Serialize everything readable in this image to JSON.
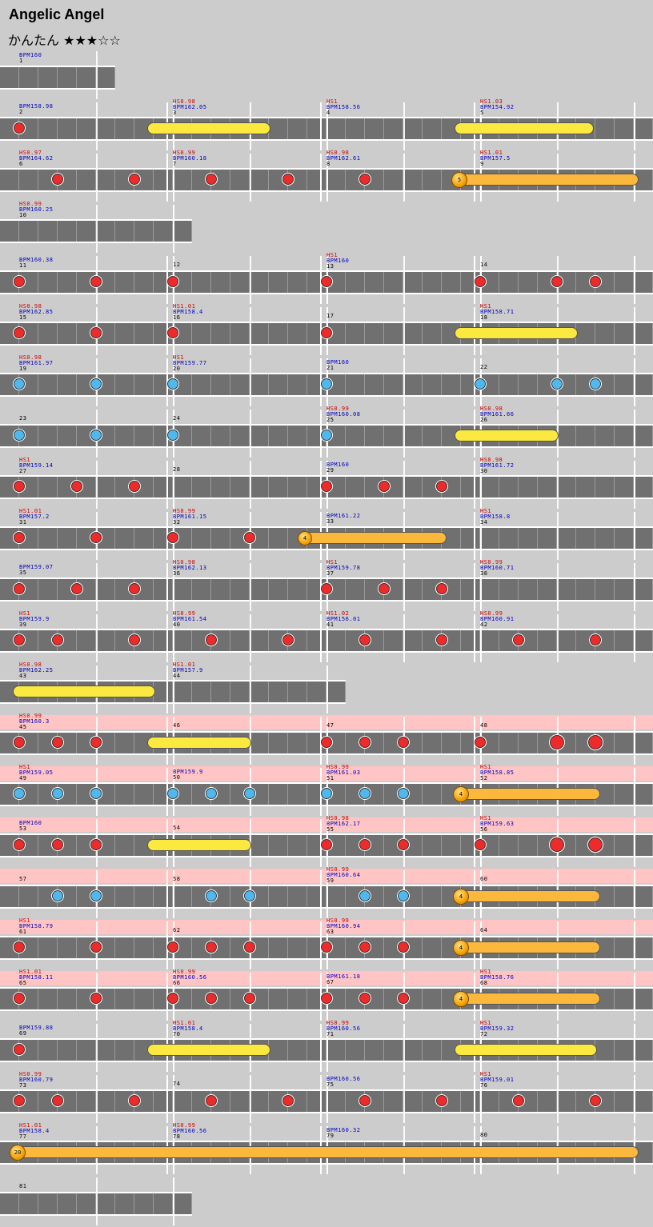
{
  "song": {
    "title": "Angelic Angel",
    "difficulty": "かんたん",
    "stars": "★★★☆☆"
  },
  "colors": {
    "red_note": "#ee2b2b",
    "blue_note": "#4fb8ee",
    "hold_yellow": "#fbe93f",
    "hold_orange": "#fcb73d",
    "highlight_band": "#ffc4c4"
  },
  "rows": [
    {
      "y": 62,
      "w": 144,
      "measures": [
        {
          "n": "1",
          "bpm": "BPM160"
        }
      ],
      "notes": []
    },
    {
      "y": 126,
      "measures": [
        {
          "n": "2",
          "bpm": "BPM158.98"
        },
        {
          "n": "3",
          "bpm": "BPM162.05",
          "hs": "HS0.98"
        },
        {
          "n": "4",
          "bpm": "BPM158.56",
          "hs": "HS1"
        },
        {
          "n": "5",
          "bpm": "BPM154.92",
          "hs": "HS1.03"
        }
      ],
      "notes": [
        {
          "x": 24,
          "c": "red"
        },
        {
          "hold": [
            184,
            338
          ],
          "c": "yellow"
        },
        {
          "hold": [
            568,
            742
          ],
          "c": "yellow"
        }
      ]
    },
    {
      "y": 190,
      "measures": [
        {
          "n": "6",
          "bpm": "BPM164.62",
          "hs": "HS0.97"
        },
        {
          "n": "7",
          "bpm": "BPM160.18",
          "hs": "HS0.99"
        },
        {
          "n": "8",
          "bpm": "BPM162.61",
          "hs": "HS0.98"
        },
        {
          "n": "9",
          "bpm": "BPM157.5",
          "hs": "HS1.01"
        }
      ],
      "notes": [
        {
          "x": 72,
          "c": "red"
        },
        {
          "x": 168,
          "c": "red"
        },
        {
          "x": 264,
          "c": "red"
        },
        {
          "x": 360,
          "c": "red"
        },
        {
          "x": 456,
          "c": "red"
        },
        {
          "hold": [
            566,
            798
          ],
          "c": "orange",
          "ball": "5"
        }
      ]
    },
    {
      "y": 254,
      "w": 240,
      "measures": [
        {
          "n": "10",
          "bpm": "BPM160.25",
          "hs": "HS0.99"
        }
      ],
      "notes": []
    },
    {
      "y": 318,
      "measures": [
        {
          "n": "11",
          "bpm": "BPM160.38"
        },
        {
          "n": "12"
        },
        {
          "n": "13",
          "bpm": "BPM160",
          "hs": "HS1"
        },
        {
          "n": "14"
        }
      ],
      "notes": [
        {
          "x": 24,
          "c": "red"
        },
        {
          "x": 120,
          "c": "red"
        },
        {
          "x": 216,
          "c": "red"
        },
        {
          "x": 408,
          "c": "red"
        },
        {
          "x": 600,
          "c": "red"
        },
        {
          "x": 696,
          "c": "red"
        },
        {
          "x": 744,
          "c": "red"
        }
      ]
    },
    {
      "y": 382,
      "measures": [
        {
          "n": "15",
          "bpm": "BPM162.85",
          "hs": "HS0.98"
        },
        {
          "n": "16",
          "bpm": "BPM158.4",
          "hs": "HS1.01"
        },
        {
          "n": "17"
        },
        {
          "n": "18",
          "bpm": "BPM158.71",
          "hs": "HS1"
        }
      ],
      "notes": [
        {
          "x": 24,
          "c": "red"
        },
        {
          "x": 120,
          "c": "red"
        },
        {
          "x": 216,
          "c": "red"
        },
        {
          "x": 408,
          "c": "red"
        },
        {
          "hold": [
            568,
            722
          ],
          "c": "yellow"
        }
      ]
    },
    {
      "y": 446,
      "measures": [
        {
          "n": "19",
          "bpm": "BPM161.97",
          "hs": "HS0.98"
        },
        {
          "n": "20",
          "bpm": "BPM159.77",
          "hs": "HS1"
        },
        {
          "n": "21",
          "bpm": "BPM160"
        },
        {
          "n": "22"
        }
      ],
      "notes": [
        {
          "x": 24,
          "c": "blue"
        },
        {
          "x": 120,
          "c": "blue"
        },
        {
          "x": 216,
          "c": "blue"
        },
        {
          "x": 408,
          "c": "blue"
        },
        {
          "x": 600,
          "c": "blue"
        },
        {
          "x": 696,
          "c": "blue"
        },
        {
          "x": 744,
          "c": "blue"
        }
      ]
    },
    {
      "y": 510,
      "measures": [
        {
          "n": "23"
        },
        {
          "n": "24"
        },
        {
          "n": "25",
          "bpm": "BPM160.08",
          "hs": "HS0.99"
        },
        {
          "n": "26",
          "bpm": "BPM161.66",
          "hs": "HS0.98"
        }
      ],
      "notes": [
        {
          "x": 24,
          "c": "blue"
        },
        {
          "x": 120,
          "c": "blue"
        },
        {
          "x": 216,
          "c": "blue"
        },
        {
          "x": 408,
          "c": "blue"
        },
        {
          "hold": [
            568,
            698
          ],
          "c": "yellow"
        }
      ]
    },
    {
      "y": 574,
      "measures": [
        {
          "n": "27",
          "bpm": "BPM159.14",
          "hs": "HS1"
        },
        {
          "n": "28"
        },
        {
          "n": "29",
          "bpm": "BPM160"
        },
        {
          "n": "30",
          "bpm": "BPM161.72",
          "hs": "HS0.98"
        }
      ],
      "notes": [
        {
          "x": 24,
          "c": "red"
        },
        {
          "x": 96,
          "c": "red"
        },
        {
          "x": 168,
          "c": "red"
        },
        {
          "x": 408,
          "c": "red"
        },
        {
          "x": 480,
          "c": "red"
        },
        {
          "x": 552,
          "c": "red"
        }
      ]
    },
    {
      "y": 638,
      "measures": [
        {
          "n": "31",
          "bpm": "BPM157.2",
          "hs": "HS1.01"
        },
        {
          "n": "32",
          "bpm": "BPM161.15",
          "hs": "HS0.99"
        },
        {
          "n": "33",
          "bpm": "BPM161.22"
        },
        {
          "n": "34",
          "bpm": "BPM158.8",
          "hs": "HS1"
        }
      ],
      "notes": [
        {
          "x": 24,
          "c": "red"
        },
        {
          "x": 120,
          "c": "red"
        },
        {
          "x": 216,
          "c": "red"
        },
        {
          "x": 312,
          "c": "red"
        },
        {
          "hold": [
            374,
            558
          ],
          "c": "orange",
          "ball": "4"
        }
      ]
    },
    {
      "y": 702,
      "measures": [
        {
          "n": "35",
          "bpm": "BPM159.07"
        },
        {
          "n": "36",
          "bpm": "BPM162.13",
          "hs": "HS0.98"
        },
        {
          "n": "37",
          "bpm": "BPM159.78",
          "hs": "HS1"
        },
        {
          "n": "38",
          "bpm": "BPM160.71",
          "hs": "HS0.99"
        }
      ],
      "notes": [
        {
          "x": 24,
          "c": "red"
        },
        {
          "x": 96,
          "c": "red"
        },
        {
          "x": 168,
          "c": "red"
        },
        {
          "x": 408,
          "c": "red"
        },
        {
          "x": 480,
          "c": "red"
        },
        {
          "x": 552,
          "c": "red"
        }
      ]
    },
    {
      "y": 766,
      "measures": [
        {
          "n": "39",
          "bpm": "BPM159.9",
          "hs": "HS1"
        },
        {
          "n": "40",
          "bpm": "BPM161.54",
          "hs": "HS0.99"
        },
        {
          "n": "41",
          "bpm": "BPM156.01",
          "hs": "HS1.02"
        },
        {
          "n": "42",
          "bpm": "BPM160.91",
          "hs": "HS0.99"
        }
      ],
      "notes": [
        {
          "x": 24,
          "c": "red"
        },
        {
          "x": 72,
          "c": "red"
        },
        {
          "x": 168,
          "c": "red"
        },
        {
          "x": 264,
          "c": "red"
        },
        {
          "x": 360,
          "c": "red"
        },
        {
          "x": 456,
          "c": "red"
        },
        {
          "x": 552,
          "c": "red"
        },
        {
          "x": 648,
          "c": "red"
        },
        {
          "x": 744,
          "c": "red"
        }
      ]
    },
    {
      "y": 830,
      "w": 432,
      "measures": [
        {
          "n": "43",
          "bpm": "BPM162.25",
          "hs": "HS0.98"
        },
        {
          "n": "44",
          "bpm": "BPM157.9",
          "hs": "HS1.01"
        }
      ],
      "notes": [
        {
          "hold": [
            16,
            194
          ],
          "c": "yellow"
        }
      ]
    },
    {
      "y": 894,
      "band": true,
      "measures": [
        {
          "n": "45",
          "bpm": "BPM160.3",
          "hs": "HS0.99"
        },
        {
          "n": "46"
        },
        {
          "n": "47"
        },
        {
          "n": "48"
        }
      ],
      "notes": [
        {
          "x": 24,
          "c": "red"
        },
        {
          "x": 72,
          "c": "red"
        },
        {
          "x": 120,
          "c": "red"
        },
        {
          "hold": [
            184,
            314
          ],
          "c": "yellow"
        },
        {
          "x": 408,
          "c": "red"
        },
        {
          "x": 456,
          "c": "red"
        },
        {
          "x": 504,
          "c": "red"
        },
        {
          "x": 600,
          "c": "red"
        },
        {
          "x": 696,
          "c": "red",
          "big": true
        },
        {
          "x": 744,
          "c": "red",
          "big": true
        }
      ]
    },
    {
      "y": 958,
      "band": true,
      "measures": [
        {
          "n": "49",
          "bpm": "BPM159.05",
          "hs": "HS1"
        },
        {
          "n": "50",
          "bpm": "BPM159.9"
        },
        {
          "n": "51",
          "bpm": "BPM161.03",
          "hs": "HS0.99"
        },
        {
          "n": "52",
          "bpm": "BPM158.85",
          "hs": "HS1"
        }
      ],
      "notes": [
        {
          "x": 24,
          "c": "blue"
        },
        {
          "x": 72,
          "c": "blue"
        },
        {
          "x": 120,
          "c": "blue"
        },
        {
          "x": 216,
          "c": "blue"
        },
        {
          "x": 264,
          "c": "blue"
        },
        {
          "x": 312,
          "c": "blue"
        },
        {
          "x": 408,
          "c": "blue"
        },
        {
          "x": 456,
          "c": "blue"
        },
        {
          "x": 504,
          "c": "blue"
        },
        {
          "hold": [
            568,
            750
          ],
          "c": "orange",
          "ball": "4"
        }
      ]
    },
    {
      "y": 1022,
      "band": true,
      "measures": [
        {
          "n": "53",
          "bpm": "BPM160"
        },
        {
          "n": "54"
        },
        {
          "n": "55",
          "bpm": "BPM162.17",
          "hs": "HS0.98"
        },
        {
          "n": "56",
          "bpm": "BPM159.63",
          "hs": "HS1"
        }
      ],
      "notes": [
        {
          "x": 24,
          "c": "red"
        },
        {
          "x": 72,
          "c": "red"
        },
        {
          "x": 120,
          "c": "red"
        },
        {
          "hold": [
            184,
            314
          ],
          "c": "yellow"
        },
        {
          "x": 408,
          "c": "red"
        },
        {
          "x": 456,
          "c": "red"
        },
        {
          "x": 504,
          "c": "red"
        },
        {
          "x": 600,
          "c": "red"
        },
        {
          "x": 696,
          "c": "red",
          "big": true
        },
        {
          "x": 744,
          "c": "red",
          "big": true
        }
      ]
    },
    {
      "y": 1086,
      "band": true,
      "measures": [
        {
          "n": "57"
        },
        {
          "n": "58"
        },
        {
          "n": "59",
          "bpm": "BPM160.64",
          "hs": "HS0.99"
        },
        {
          "n": "60"
        }
      ],
      "notes": [
        {
          "x": 72,
          "c": "blue"
        },
        {
          "x": 120,
          "c": "blue"
        },
        {
          "x": 264,
          "c": "blue"
        },
        {
          "x": 312,
          "c": "blue"
        },
        {
          "x": 456,
          "c": "blue"
        },
        {
          "x": 504,
          "c": "blue"
        },
        {
          "hold": [
            568,
            750
          ],
          "c": "orange",
          "ball": "4"
        }
      ]
    },
    {
      "y": 1150,
      "band": true,
      "measures": [
        {
          "n": "61",
          "bpm": "BPM158.79",
          "hs": "HS1"
        },
        {
          "n": "62"
        },
        {
          "n": "63",
          "bpm": "BPM160.94",
          "hs": "HS0.99"
        },
        {
          "n": "64"
        }
      ],
      "notes": [
        {
          "x": 24,
          "c": "red"
        },
        {
          "x": 120,
          "c": "red"
        },
        {
          "x": 216,
          "c": "red"
        },
        {
          "x": 264,
          "c": "red"
        },
        {
          "x": 312,
          "c": "red"
        },
        {
          "x": 408,
          "c": "red"
        },
        {
          "x": 456,
          "c": "red"
        },
        {
          "x": 504,
          "c": "red"
        },
        {
          "hold": [
            568,
            750
          ],
          "c": "orange",
          "ball": "4"
        }
      ]
    },
    {
      "y": 1214,
      "band": true,
      "measures": [
        {
          "n": "65",
          "bpm": "BPM158.11",
          "hs": "HS1.01"
        },
        {
          "n": "66",
          "bpm": "BPM160.56",
          "hs": "HS0.99"
        },
        {
          "n": "67",
          "bpm": "BPM161.18"
        },
        {
          "n": "68",
          "bpm": "BPM158.76",
          "hs": "HS1"
        }
      ],
      "notes": [
        {
          "x": 24,
          "c": "red"
        },
        {
          "x": 120,
          "c": "red"
        },
        {
          "x": 216,
          "c": "red"
        },
        {
          "x": 264,
          "c": "red"
        },
        {
          "x": 312,
          "c": "red"
        },
        {
          "x": 408,
          "c": "red"
        },
        {
          "x": 456,
          "c": "red"
        },
        {
          "x": 504,
          "c": "red"
        },
        {
          "hold": [
            568,
            750
          ],
          "c": "orange",
          "ball": "4"
        }
      ]
    },
    {
      "y": 1278,
      "measures": [
        {
          "n": "69",
          "bpm": "BPM159.88"
        },
        {
          "n": "70",
          "bpm": "BPM158.4",
          "hs": "HS1.01"
        },
        {
          "n": "71",
          "bpm": "BPM160.56",
          "hs": "HS0.99"
        },
        {
          "n": "72",
          "bpm": "BPM159.32",
          "hs": "HS1"
        }
      ],
      "notes": [
        {
          "x": 24,
          "c": "red"
        },
        {
          "hold": [
            184,
            338
          ],
          "c": "yellow"
        },
        {
          "hold": [
            568,
            746
          ],
          "c": "yellow"
        }
      ]
    },
    {
      "y": 1342,
      "measures": [
        {
          "n": "73",
          "bpm": "BPM160.79",
          "hs": "HS0.99"
        },
        {
          "n": "74"
        },
        {
          "n": "75",
          "bpm": "BPM160.56"
        },
        {
          "n": "76",
          "bpm": "BPM159.01",
          "hs": "HS1"
        }
      ],
      "notes": [
        {
          "x": 24,
          "c": "red"
        },
        {
          "x": 72,
          "c": "red"
        },
        {
          "x": 168,
          "c": "red"
        },
        {
          "x": 264,
          "c": "red"
        },
        {
          "x": 360,
          "c": "red"
        },
        {
          "x": 456,
          "c": "red"
        },
        {
          "x": 552,
          "c": "red"
        },
        {
          "x": 648,
          "c": "red"
        },
        {
          "x": 744,
          "c": "red"
        }
      ]
    },
    {
      "y": 1406,
      "measures": [
        {
          "n": "77",
          "bpm": "BPM158.4",
          "hs": "HS1.01"
        },
        {
          "n": "78",
          "bpm": "BPM160.56",
          "hs": "HS0.99"
        },
        {
          "n": "79",
          "bpm": "BPM160.32"
        },
        {
          "n": "80"
        }
      ],
      "notes": [
        {
          "hold": [
            14,
            798
          ],
          "c": "orange",
          "ball": "20"
        }
      ]
    },
    {
      "y": 1470,
      "w": 240,
      "measures": [
        {
          "n": "81"
        }
      ],
      "notes": []
    }
  ]
}
